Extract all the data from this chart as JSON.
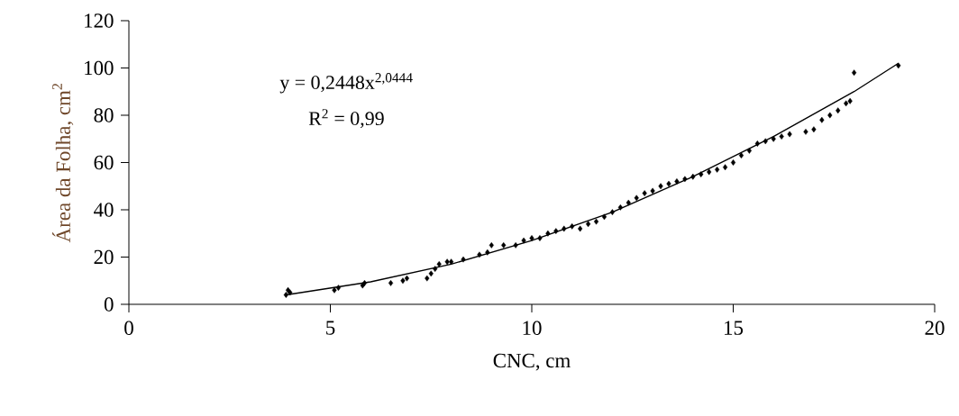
{
  "chart_data": {
    "type": "scatter",
    "xlabel": "CNC, cm",
    "ylabel": "Área da Folha, cm$^{2}$",
    "annotations": [
      "y = 0,2448x$^{2,0444}$",
      "R$^{2}$ = 0,99"
    ],
    "xlim": [
      0,
      20
    ],
    "xticks": [
      0,
      5,
      10,
      15,
      20
    ],
    "ylim": [
      0,
      120
    ],
    "yticks": [
      0,
      20,
      40,
      60,
      80,
      100,
      120
    ],
    "series": [
      {
        "color": "#000000",
        "marker": "diamond",
        "x": [
          3.9,
          3.95,
          4.0,
          5.1,
          5.2,
          5.8,
          5.85,
          6.5,
          6.8,
          6.9,
          7.4,
          7.5,
          7.6,
          7.7,
          7.9,
          8.0,
          8.3,
          8.7,
          8.9,
          9.0,
          9.3,
          9.6,
          9.8,
          10.0,
          10.2,
          10.4,
          10.6,
          10.8,
          11.0,
          11.2,
          11.4,
          11.6,
          11.8,
          12.0,
          12.2,
          12.4,
          12.6,
          12.8,
          13.0,
          13.2,
          13.4,
          13.6,
          13.8,
          14.0,
          14.2,
          14.4,
          14.6,
          14.8,
          15.0,
          15.2,
          15.4,
          15.6,
          15.8,
          16.0,
          16.2,
          16.4,
          16.8,
          17.0,
          17.2,
          17.4,
          17.6,
          17.8,
          17.9,
          18.0,
          19.1
        ],
        "values": [
          4,
          6,
          5,
          6,
          7,
          8,
          9,
          9,
          10,
          11,
          11,
          13,
          15,
          17,
          18,
          18,
          19,
          21,
          22,
          25,
          25,
          25,
          27,
          28,
          28,
          30,
          31,
          32,
          33,
          32,
          34,
          35,
          37,
          39,
          41,
          43,
          45,
          47,
          48,
          50,
          51,
          52,
          53,
          54,
          55,
          56,
          57,
          58,
          60,
          63,
          65,
          68,
          69,
          70,
          71,
          72,
          73,
          74,
          78,
          80,
          82,
          85,
          86,
          98,
          101
        ]
      },
      {
        "type": "line",
        "color": "#000000",
        "marker": "none",
        "line_style": "solid",
        "x": [
          3.9,
          6,
          8,
          10,
          12,
          14,
          16,
          18,
          19.1
        ],
        "values": [
          4,
          9.5,
          17,
          27,
          39,
          54,
          71,
          90,
          102
        ]
      }
    ]
  }
}
